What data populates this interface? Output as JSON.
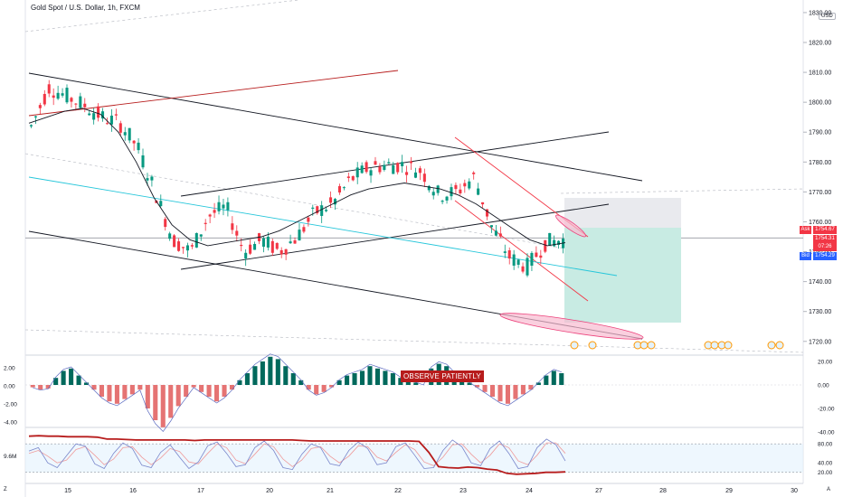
{
  "header": {
    "title": "Gold Spot / U.S. Dollar, 1h, FXCM",
    "currency": "USD"
  },
  "annotation": {
    "text": "OBSERVE PATIENTLY"
  },
  "price_tags": {
    "ask_label": "Ask",
    "ask_value": "1754.67",
    "last_value": "1754.31",
    "countdown": "07:26",
    "bid_label": "Bid",
    "bid_value": "1754.29"
  },
  "corners": {
    "left": "Z",
    "right": "A"
  },
  "colors": {
    "up": "#089981",
    "down": "#f23645",
    "bid": "#2962ff",
    "ask": "#f23645"
  },
  "chart_data": [
    {
      "type": "candlestick",
      "yticks": [
        "1830.00",
        "1820.00",
        "1810.00",
        "1800.00",
        "1790.00",
        "1780.00",
        "1770.00",
        "1760.00",
        "1750.00",
        "1740.00",
        "1730.00",
        "1720.00"
      ],
      "xticks": [
        "15",
        "16",
        "17",
        "20",
        "21",
        "22",
        "23",
        "24",
        "27",
        "28",
        "29",
        "30"
      ],
      "ylim": [
        1716,
        1833
      ],
      "ohlc_anchors": [
        [
          1791,
          1794,
          1788,
          1792
        ],
        [
          1807,
          1809,
          1803,
          1805
        ],
        [
          1803,
          1806,
          1801,
          1802
        ],
        [
          1800,
          1803,
          1798,
          1799
        ],
        [
          1796,
          1799,
          1793,
          1795
        ],
        [
          1794,
          1797,
          1792,
          1793
        ],
        [
          1789,
          1791,
          1783,
          1785
        ],
        [
          1776,
          1778,
          1768,
          1770
        ],
        [
          1759,
          1762,
          1752,
          1754
        ],
        [
          1755,
          1758,
          1747,
          1750
        ],
        [
          1760,
          1764,
          1756,
          1762
        ],
        [
          1764,
          1768,
          1760,
          1765
        ],
        [
          1756,
          1758,
          1748,
          1750
        ],
        [
          1752,
          1755,
          1749,
          1754
        ],
        [
          1748,
          1752,
          1744,
          1750
        ],
        [
          1751,
          1756,
          1749,
          1755
        ],
        [
          1760,
          1764,
          1758,
          1763
        ],
        [
          1764,
          1768,
          1761,
          1766
        ],
        [
          1770,
          1776,
          1768,
          1774
        ],
        [
          1779,
          1782,
          1776,
          1778
        ],
        [
          1777,
          1780,
          1774,
          1779
        ],
        [
          1780,
          1782,
          1776,
          1779
        ],
        [
          1778,
          1781,
          1775,
          1777
        ],
        [
          1771,
          1774,
          1766,
          1769
        ],
        [
          1772,
          1775,
          1767,
          1770
        ],
        [
          1772,
          1776,
          1769,
          1775
        ],
        [
          1766,
          1769,
          1756,
          1758
        ],
        [
          1751,
          1753,
          1744,
          1748
        ],
        [
          1744,
          1748,
          1738,
          1745
        ],
        [
          1749,
          1754,
          1747,
          1753
        ],
        [
          1753,
          1756,
          1751,
          1754
        ]
      ],
      "moving_average": [
        1793,
        1795,
        1797,
        1798,
        1796,
        1790,
        1780,
        1768,
        1759,
        1754,
        1752,
        1753,
        1754,
        1755,
        1757,
        1760,
        1763,
        1766,
        1769,
        1771,
        1772,
        1773,
        1772,
        1771,
        1769,
        1766,
        1762,
        1758,
        1754,
        1752,
        1753
      ],
      "gray_lines": [
        1754,
        1770
      ]
    },
    {
      "type": "bar",
      "name": "momentum histogram",
      "yticks": [
        "20.00",
        "0.00",
        "-20.00",
        "-40.00"
      ],
      "left_ticks": [
        "2.00",
        "0.00",
        "-2.00",
        "-4.00"
      ],
      "ylim": [
        -48,
        27
      ],
      "values": [
        -2,
        -4,
        -3,
        6,
        12,
        14,
        8,
        2,
        -4,
        -10,
        -14,
        -16,
        -12,
        -8,
        -4,
        -20,
        -30,
        -36,
        -28,
        -18,
        -10,
        -2,
        -6,
        -10,
        -14,
        -10,
        -4,
        4,
        10,
        16,
        20,
        24,
        22,
        16,
        10,
        4,
        -4,
        -8,
        -6,
        -2,
        4,
        8,
        10,
        12,
        16,
        14,
        12,
        10,
        6,
        4,
        2,
        0,
        14,
        18,
        16,
        10,
        6,
        2,
        -2,
        -6,
        -10,
        -14,
        -16,
        -12,
        -8,
        -4,
        2,
        8,
        12,
        10
      ]
    },
    {
      "type": "line",
      "name": "stochastic",
      "yticks": [
        "80.00",
        "40.00",
        "20.00"
      ],
      "left_ticks": [
        "9.6M"
      ],
      "ylim": [
        10,
        105
      ],
      "fast": [
        65,
        72,
        40,
        30,
        55,
        80,
        75,
        38,
        28,
        60,
        82,
        70,
        35,
        30,
        62,
        78,
        52,
        28,
        42,
        76,
        84,
        60,
        32,
        36,
        72,
        86,
        66,
        30,
        26,
        58,
        80,
        72,
        38,
        34,
        66,
        84,
        70,
        36,
        40,
        74,
        82,
        56,
        28,
        30,
        66,
        88,
        74,
        40,
        34,
        70,
        86,
        60,
        28,
        32,
        72,
        90,
        78,
        44
      ],
      "slow": [
        60,
        66,
        54,
        40,
        46,
        68,
        74,
        56,
        36,
        48,
        72,
        74,
        52,
        36,
        50,
        70,
        64,
        42,
        38,
        60,
        80,
        72,
        46,
        38,
        58,
        80,
        74,
        48,
        32,
        46,
        70,
        74,
        54,
        40,
        54,
        76,
        74,
        52,
        44,
        62,
        78,
        68,
        42,
        34,
        52,
        78,
        80,
        58,
        40,
        56,
        80,
        72,
        44,
        36,
        56,
        82,
        82,
        60
      ],
      "signal_red": [
        96,
        97,
        96,
        96,
        95,
        95,
        95,
        94,
        90,
        90,
        89,
        88,
        88,
        88,
        88,
        88,
        88,
        87,
        88,
        88,
        88,
        88,
        88,
        88,
        88,
        88,
        88,
        88,
        87,
        86,
        86,
        86,
        86,
        86,
        86,
        86,
        86,
        86,
        86,
        86,
        85,
        62,
        32,
        30,
        29,
        31,
        30,
        27,
        25,
        18,
        16,
        17,
        18,
        20,
        20,
        21
      ]
    }
  ]
}
